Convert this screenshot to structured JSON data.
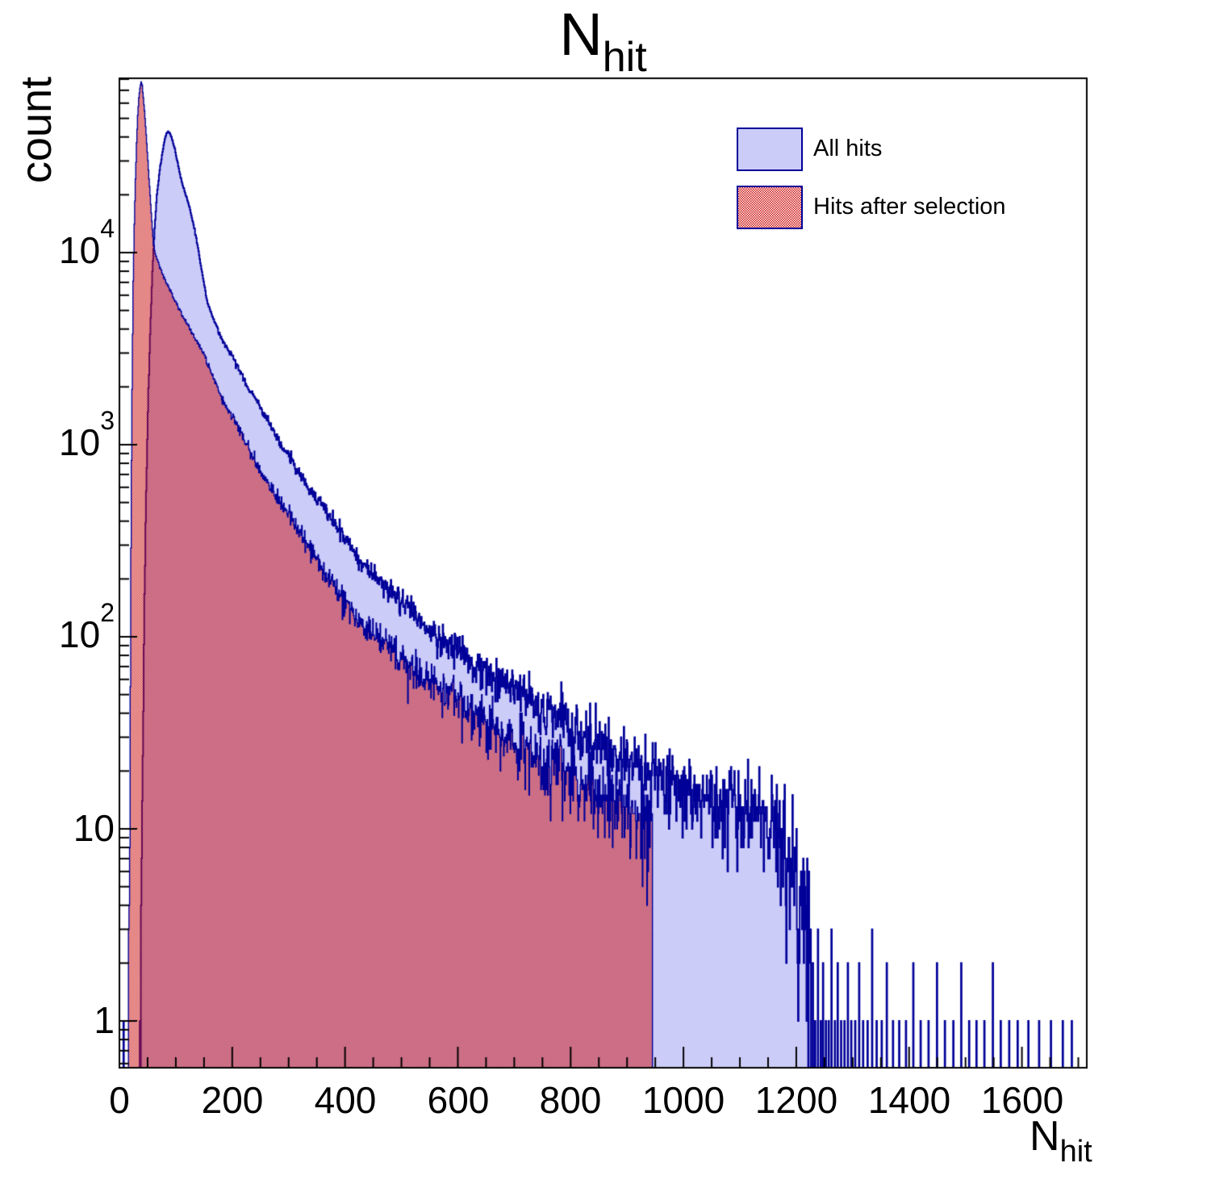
{
  "title": {
    "text": "N",
    "sub": "hit"
  },
  "y_axis": {
    "label": "count",
    "ticks": [
      {
        "text": "1",
        "sup": ""
      },
      {
        "text": "10",
        "sup": ""
      },
      {
        "text": "10",
        "sup": "2"
      },
      {
        "text": "10",
        "sup": "3"
      },
      {
        "text": "10",
        "sup": "4"
      }
    ]
  },
  "x_axis": {
    "label": {
      "text": "N",
      "sub": "hit"
    },
    "ticks": [
      "0",
      "200",
      "400",
      "600",
      "800",
      "1000",
      "1200",
      "1400",
      "1600"
    ]
  },
  "legend": {
    "items": [
      {
        "label": "All hits",
        "style": "solid"
      },
      {
        "label": "Hits after selection",
        "style": "hatch"
      }
    ]
  },
  "colors": {
    "line_navy": "#000099",
    "fill_lavender": "#ccccf9",
    "fill_red": "#cc1111",
    "axis_black": "#000000",
    "background": "#ffffff"
  },
  "chart_data": {
    "type": "bar",
    "subtype": "histogram-log-y",
    "title": "N_hit",
    "xlabel": "N_hit",
    "ylabel": "count",
    "x_range": [
      0,
      1715
    ],
    "y_range": [
      0.565,
      81000
    ],
    "y_scale": "log",
    "x_major_tick_step": 200,
    "x_minor_tick_step": 50,
    "grid": false,
    "legend_position": "top-right",
    "series": [
      {
        "name": "All hits",
        "style": "solid",
        "bin_width": 1,
        "anchors": [
          [
            36,
            0.6
          ],
          [
            38,
            3
          ],
          [
            40,
            15
          ],
          [
            43,
            90
          ],
          [
            46,
            400
          ],
          [
            50,
            1500
          ],
          [
            54,
            3800
          ],
          [
            58,
            8000
          ],
          [
            62,
            13500
          ],
          [
            66,
            20000
          ],
          [
            71,
            27000
          ],
          [
            76,
            33500
          ],
          [
            80,
            39000
          ],
          [
            83,
            41800
          ],
          [
            86,
            42600
          ],
          [
            89,
            41800
          ],
          [
            93,
            39000
          ],
          [
            98,
            34500
          ],
          [
            104,
            28000
          ],
          [
            110,
            23500
          ],
          [
            117,
            20000
          ],
          [
            124,
            17200
          ],
          [
            132,
            13500
          ],
          [
            140,
            10200
          ],
          [
            148,
            7300
          ],
          [
            155,
            5600
          ],
          [
            163,
            4800
          ],
          [
            172,
            4100
          ],
          [
            182,
            3500
          ],
          [
            192,
            3100
          ],
          [
            200,
            2900
          ],
          [
            212,
            2450
          ],
          [
            225,
            2050
          ],
          [
            245,
            1640
          ],
          [
            265,
            1300
          ],
          [
            285,
            1000
          ],
          [
            305,
            840
          ],
          [
            327,
            640
          ],
          [
            350,
            520
          ],
          [
            375,
            420
          ],
          [
            400,
            330
          ],
          [
            427,
            240
          ],
          [
            455,
            205
          ],
          [
            485,
            165
          ],
          [
            515,
            135
          ],
          [
            545,
            112
          ],
          [
            575,
            95
          ],
          [
            610,
            82
          ],
          [
            650,
            65
          ],
          [
            695,
            54
          ],
          [
            740,
            44
          ],
          [
            790,
            36
          ],
          [
            840,
            29
          ],
          [
            890,
            23
          ],
          [
            940,
            20
          ],
          [
            990,
            17
          ],
          [
            1040,
            15
          ],
          [
            1090,
            13
          ],
          [
            1130,
            12
          ],
          [
            1160,
            11
          ],
          [
            1185,
            8
          ],
          [
            1200,
            6
          ],
          [
            1210,
            4
          ],
          [
            1218,
            3
          ],
          [
            1225,
            2
          ]
        ],
        "spikes": [
          [
            7,
            1
          ],
          [
            1229,
            2
          ],
          [
            1233,
            1
          ],
          [
            1238,
            3
          ],
          [
            1243,
            1
          ],
          [
            1247,
            2
          ],
          [
            1252,
            1
          ],
          [
            1257,
            1
          ],
          [
            1262,
            3
          ],
          [
            1268,
            1
          ],
          [
            1273,
            2
          ],
          [
            1279,
            1
          ],
          [
            1285,
            1
          ],
          [
            1291,
            2
          ],
          [
            1297,
            1
          ],
          [
            1304,
            1
          ],
          [
            1311,
            2
          ],
          [
            1318,
            1
          ],
          [
            1326,
            1
          ],
          [
            1334,
            3
          ],
          [
            1342,
            1
          ],
          [
            1351,
            1
          ],
          [
            1360,
            2
          ],
          [
            1371,
            1
          ],
          [
            1382,
            1
          ],
          [
            1394,
            1
          ],
          [
            1407,
            2
          ],
          [
            1420,
            1
          ],
          [
            1434,
            1
          ],
          [
            1449,
            2
          ],
          [
            1463,
            1
          ],
          [
            1478,
            1
          ],
          [
            1492,
            2
          ],
          [
            1506,
            1
          ],
          [
            1519,
            1
          ],
          [
            1533,
            1
          ],
          [
            1548,
            2
          ],
          [
            1562,
            1
          ],
          [
            1577,
            1
          ],
          [
            1592,
            1
          ],
          [
            1611,
            1
          ],
          [
            1630,
            1
          ],
          [
            1651,
            1
          ],
          [
            1672,
            1
          ],
          [
            1688,
            1
          ]
        ],
        "x_end": 1690
      },
      {
        "name": "Hits after selection",
        "style": "hatch",
        "bin_width": 1,
        "anchors": [
          [
            16,
            0.6
          ],
          [
            18,
            8
          ],
          [
            20,
            300
          ],
          [
            22,
            2000
          ],
          [
            24,
            7000
          ],
          [
            26,
            14000
          ],
          [
            28,
            24000
          ],
          [
            30,
            37000
          ],
          [
            32,
            52000
          ],
          [
            34,
            64000
          ],
          [
            36,
            72000
          ],
          [
            38,
            78000
          ],
          [
            40,
            74000
          ],
          [
            42,
            64000
          ],
          [
            45,
            50000
          ],
          [
            48,
            37000
          ],
          [
            51,
            27000
          ],
          [
            54,
            20000
          ],
          [
            57,
            14500
          ],
          [
            60,
            11000
          ],
          [
            64,
            9600
          ],
          [
            70,
            8600
          ],
          [
            78,
            7500
          ],
          [
            86,
            6700
          ],
          [
            95,
            5900
          ],
          [
            103,
            5250
          ],
          [
            115,
            4500
          ],
          [
            125,
            4000
          ],
          [
            138,
            3400
          ],
          [
            150,
            2950
          ],
          [
            165,
            2300
          ],
          [
            183,
            1700
          ],
          [
            200,
            1400
          ],
          [
            215,
            1150
          ],
          [
            235,
            880
          ],
          [
            259,
            640
          ],
          [
            280,
            520
          ],
          [
            300,
            430
          ],
          [
            325,
            330
          ],
          [
            355,
            240
          ],
          [
            385,
            175
          ],
          [
            415,
            130
          ],
          [
            427,
            115
          ],
          [
            455,
            100
          ],
          [
            485,
            85
          ],
          [
            520,
            68
          ],
          [
            555,
            58
          ],
          [
            573,
            54
          ],
          [
            610,
            45
          ],
          [
            650,
            36
          ],
          [
            690,
            29
          ],
          [
            730,
            25
          ],
          [
            770,
            21
          ],
          [
            810,
            18
          ],
          [
            850,
            16
          ],
          [
            890,
            13
          ],
          [
            915,
            12
          ],
          [
            940,
            11
          ],
          [
            944,
            10
          ]
        ],
        "spikes": [],
        "cutoff": 945
      }
    ]
  }
}
